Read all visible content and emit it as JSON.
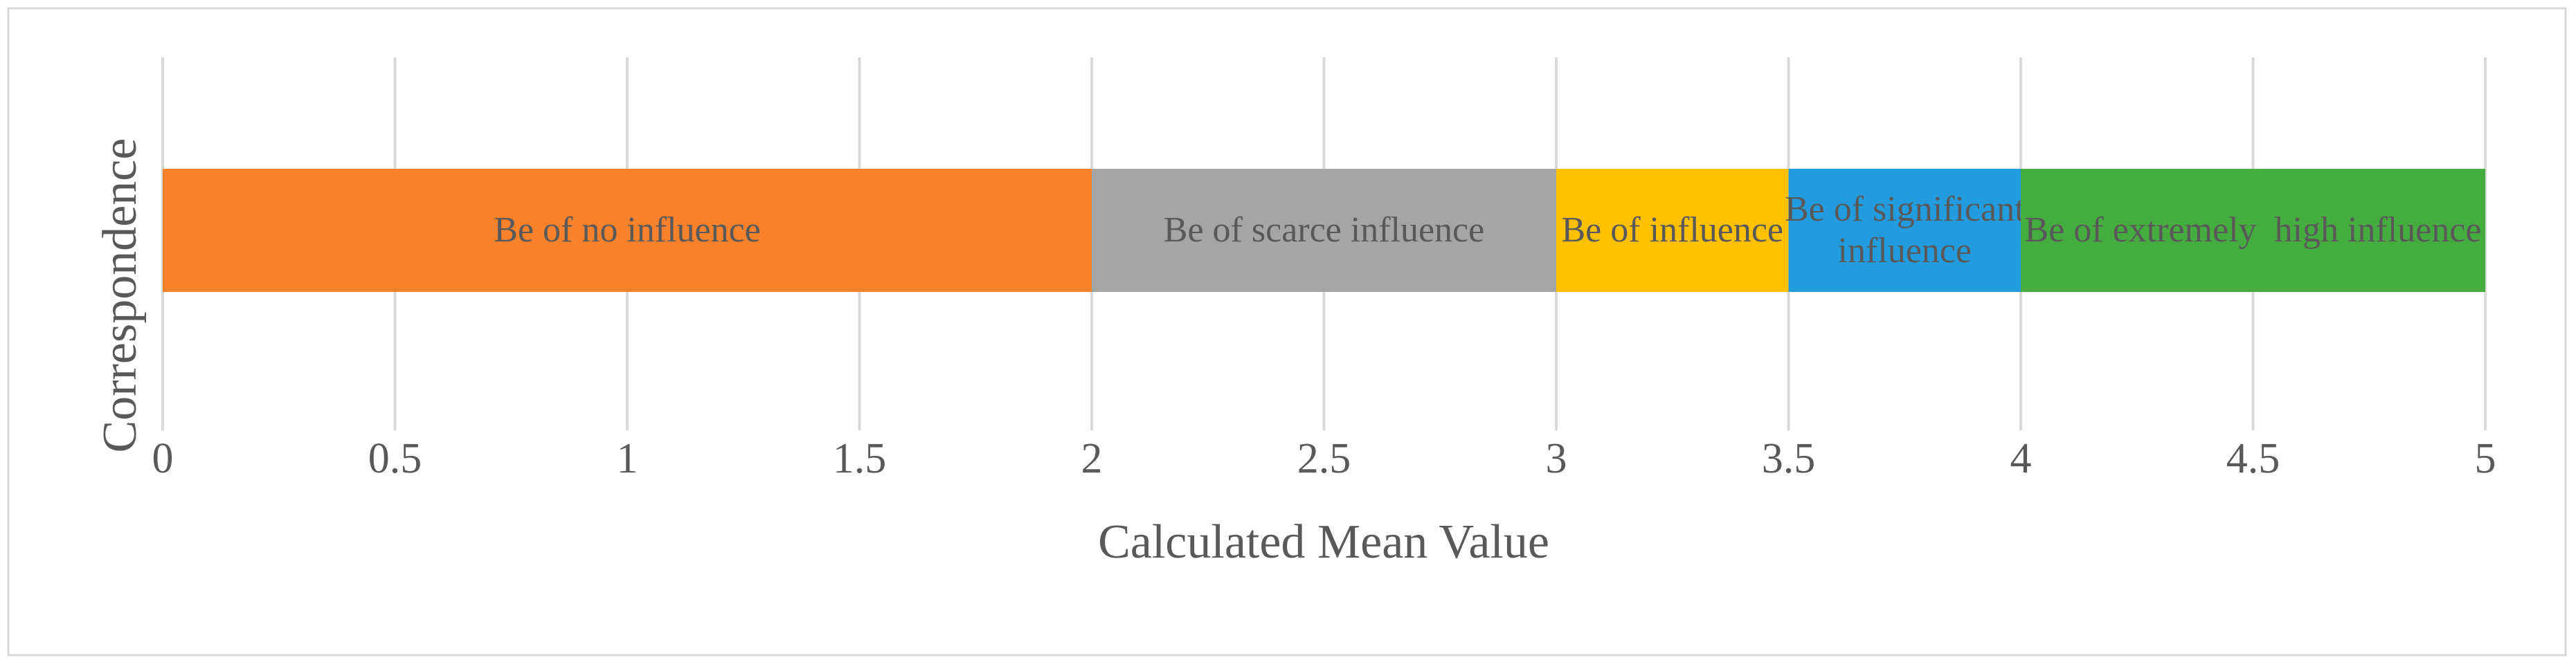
{
  "chart_data": {
    "type": "stacked_bar_horizontal",
    "x_label": "Calculated Mean Value",
    "y_label": "Correspondence",
    "categories": [
      null
    ],
    "series": [
      {
        "name": "Be of no influence",
        "color": "#F8812C",
        "values": [
          2
        ]
      },
      {
        "name": "Be of scarce influence",
        "color": "#A5A5A5",
        "values": [
          1
        ]
      },
      {
        "name": "Be of influence",
        "color": "#FFC000",
        "values": [
          0.5
        ]
      },
      {
        "name": "Be of significant influence",
        "color": "#229CDE",
        "values": [
          0.5
        ]
      },
      {
        "name": "Be of extremely  high influence",
        "color": "#45AD3F",
        "values": [
          1
        ]
      }
    ],
    "xlim": [
      0,
      5
    ],
    "xticks": [
      0,
      0.5,
      1,
      1.5,
      2,
      2.5,
      3,
      3.5,
      4,
      4.5,
      5
    ],
    "grid": true
  }
}
